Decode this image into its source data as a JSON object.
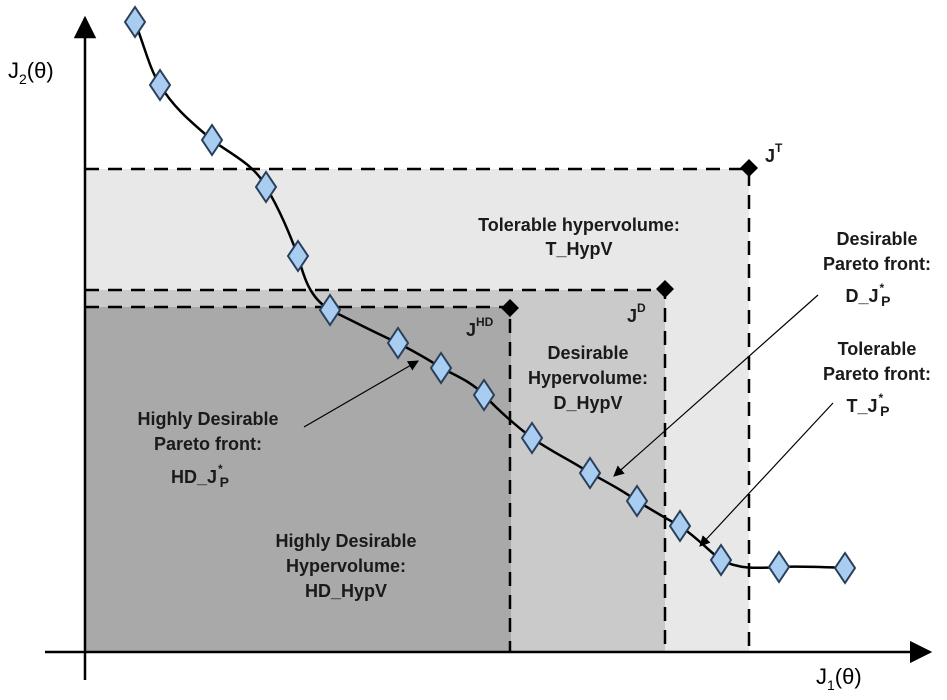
{
  "axes": {
    "x_label": "J",
    "x_sub": "1",
    "x_tail": "(θ)",
    "y_label": "J",
    "y_sub": "2",
    "y_tail": "(θ)"
  },
  "points": {
    "t": {
      "base": "J",
      "sup": "T"
    },
    "d": {
      "base": "J",
      "sup": "D"
    },
    "hd": {
      "base": "J",
      "sup": "HD"
    }
  },
  "regions": {
    "tolerable": {
      "line1": "Tolerable hypervolume:",
      "line2": "T_HypV"
    },
    "desirable": {
      "line1": "Desirable",
      "line2": "Hypervolume:",
      "line3": "D_HypV"
    },
    "highly": {
      "line1": "Highly Desirable",
      "line2": "Hypervolume:",
      "line3": "HD_HypV"
    }
  },
  "fronts": {
    "desirable": {
      "line1": "Desirable",
      "line2": "Pareto front:",
      "base": "D_J",
      "sup": "*",
      "sub": "P"
    },
    "tolerable": {
      "line1": "Tolerable",
      "line2": "Pareto front:",
      "base": "T_J",
      "sup": "*",
      "sub": "P"
    },
    "highly": {
      "line1": "Highly Desirable",
      "line2": "Pareto front:",
      "base": "HD_J",
      "sup": "*",
      "sub": "P"
    }
  },
  "colors": {
    "tolerable_region": "#e8e8e8",
    "desirable_region": "#cacaca",
    "highly_region": "#a9a9a9",
    "marker_fill": "#a8cdf0",
    "marker_stroke": "#2a3f5a"
  }
}
